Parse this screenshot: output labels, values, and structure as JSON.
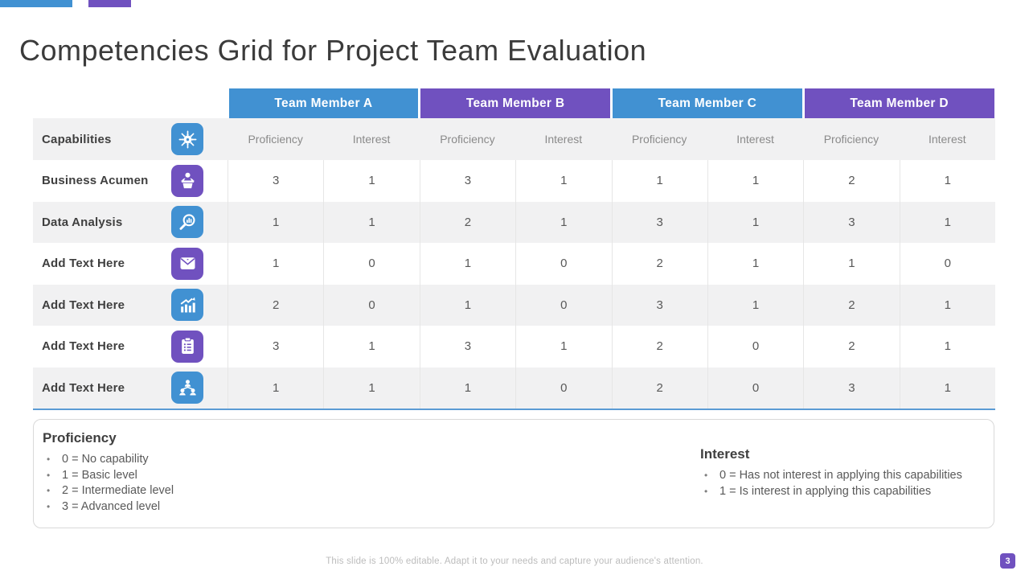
{
  "slide": {
    "title": "Competencies Grid for Project Team Evaluation",
    "footer_note": "This slide is 100% editable. Adapt it to your needs and capture your audience's attention.",
    "page_number": "3"
  },
  "colors": {
    "blue": "#4191d2",
    "purple": "#7051bf",
    "table_bottom_border": "#5b9bd5",
    "stripe_gray": "#f1f1f2"
  },
  "table": {
    "members": [
      {
        "label": "Team Member A",
        "color": "#4191d2"
      },
      {
        "label": "Team Member B",
        "color": "#7051bf"
      },
      {
        "label": "Team Member C",
        "color": "#4191d2"
      },
      {
        "label": "Team Member D",
        "color": "#7051bf"
      }
    ],
    "subheader": {
      "capabilities_label": "Capabilities",
      "capabilities_icon": "idea-gear-icon",
      "capabilities_icon_color": "#4191d2",
      "metric_labels": [
        "Proficiency",
        "Interest",
        "Proficiency",
        "Interest",
        "Proficiency",
        "Interest",
        "Proficiency",
        "Interest"
      ]
    },
    "rows": [
      {
        "label": "Business Acumen",
        "icon": "podium-presenter-icon",
        "icon_color": "#7051bf",
        "values": [
          3,
          1,
          3,
          1,
          1,
          1,
          2,
          1
        ]
      },
      {
        "label": "Data Analysis",
        "icon": "search-chart-icon",
        "icon_color": "#4191d2",
        "values": [
          1,
          1,
          2,
          1,
          3,
          1,
          3,
          1
        ]
      },
      {
        "label": "Add Text Here",
        "icon": "envelope-icon",
        "icon_color": "#7051bf",
        "values": [
          1,
          0,
          1,
          0,
          2,
          1,
          1,
          0
        ]
      },
      {
        "label": "Add Text Here",
        "icon": "growth-chart-icon",
        "icon_color": "#4191d2",
        "values": [
          2,
          0,
          1,
          0,
          3,
          1,
          2,
          1
        ]
      },
      {
        "label": "Add Text Here",
        "icon": "clipboard-list-icon",
        "icon_color": "#7051bf",
        "values": [
          3,
          1,
          3,
          1,
          2,
          0,
          2,
          1
        ]
      },
      {
        "label": "Add Text Here",
        "icon": "org-chart-icon",
        "icon_color": "#4191d2",
        "values": [
          1,
          1,
          1,
          0,
          2,
          0,
          3,
          1
        ]
      }
    ]
  },
  "legend": {
    "proficiency": {
      "title": "Proficiency",
      "items": [
        "0 = No capability",
        "1 = Basic level",
        "2 = Intermediate level",
        "3 = Advanced level"
      ]
    },
    "interest": {
      "title": "Interest",
      "items": [
        "0 = Has not interest in applying this capabilities",
        "1 = Is interest in applying this capabilities"
      ]
    }
  }
}
